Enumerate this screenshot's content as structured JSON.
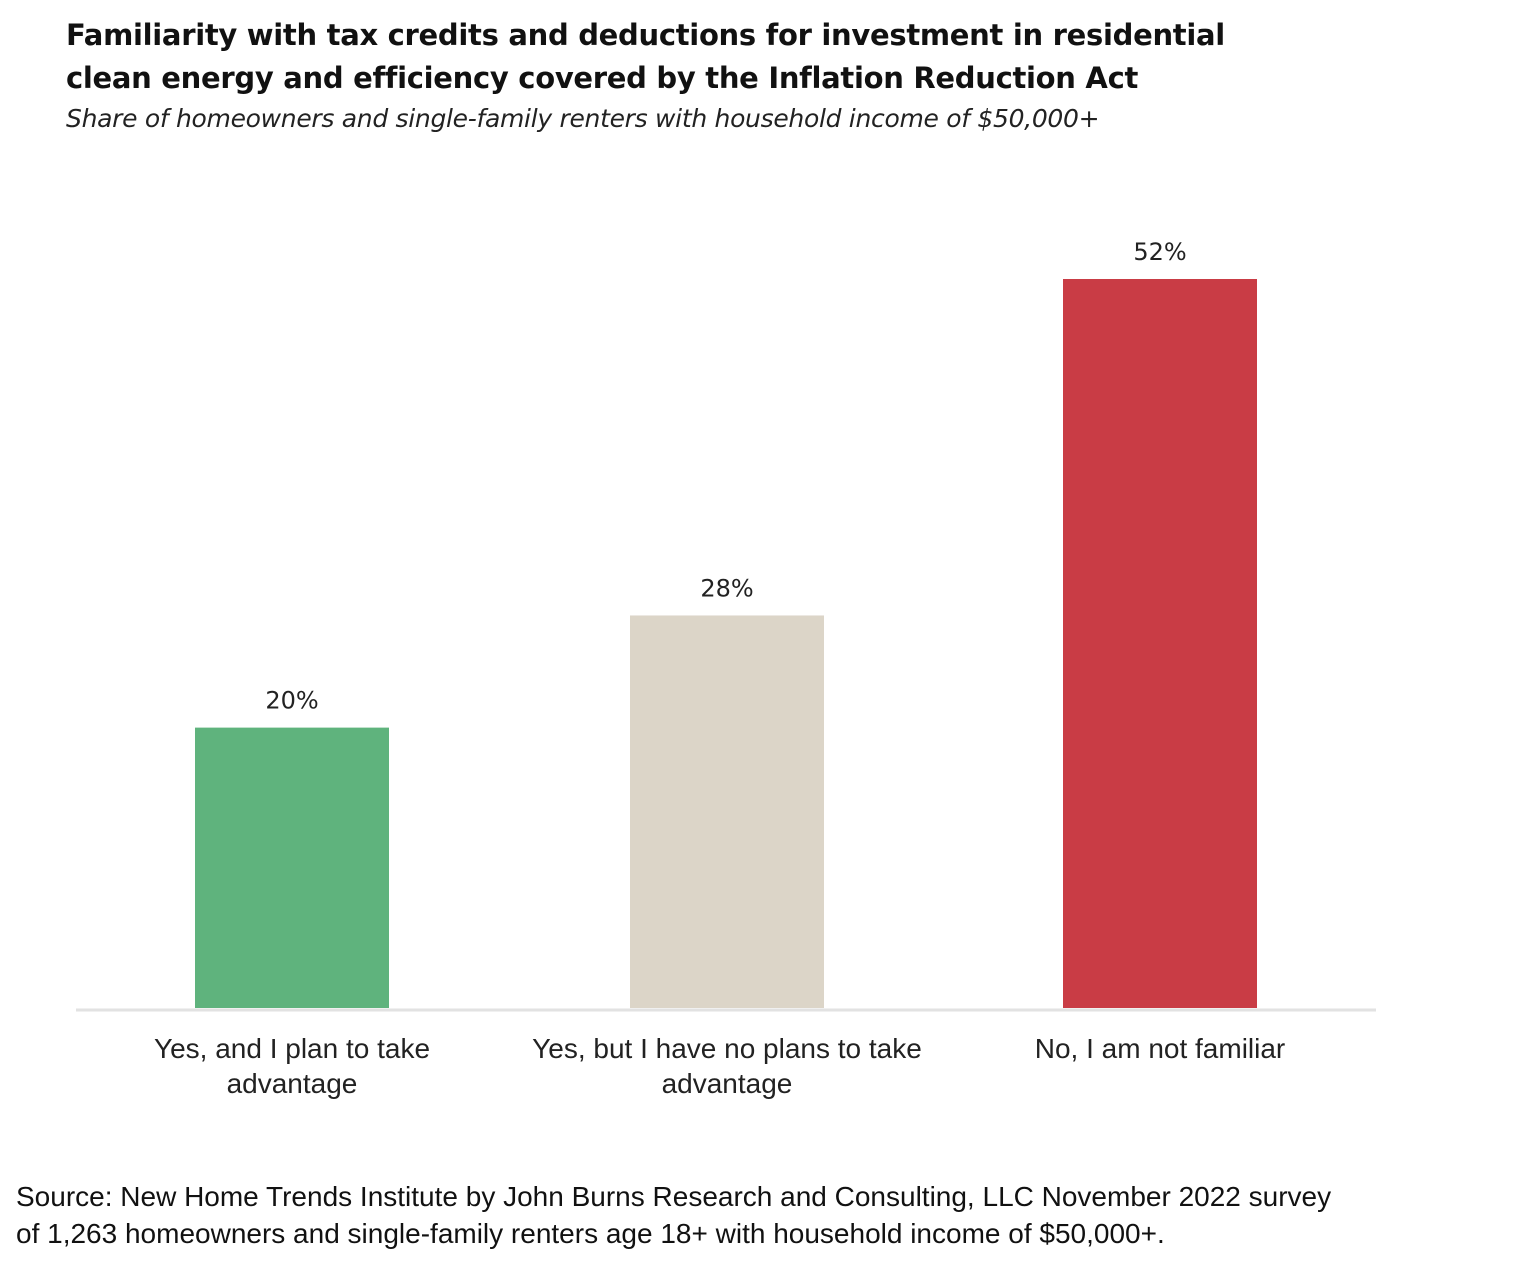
{
  "chart_data": {
    "type": "bar",
    "title": "Familiarity with tax credits and deductions for investment in residential clean energy and efficiency covered by the Inflation Reduction Act",
    "title_lines": [
      "Familiarity with tax credits and deductions for investment in residential",
      "clean energy and efficiency covered by the Inflation Reduction Act"
    ],
    "subtitle": "Share of homeowners and single-family renters with household income of $50,000+",
    "categories": [
      [
        "Yes, and I plan to take",
        "advantage"
      ],
      [
        "Yes, but I have no plans to take",
        "advantage"
      ],
      [
        "No, I am not familiar"
      ]
    ],
    "values": [
      20,
      28,
      52
    ],
    "value_labels": [
      "20%",
      "28%",
      "52%"
    ],
    "colors": [
      "#5fb37d",
      "#dcd5c8",
      "#c93c45"
    ],
    "xlabel": "",
    "ylabel": "",
    "ylim": [
      0,
      52
    ],
    "grid": false,
    "legend": "none",
    "axis_color": "#e2e2e2"
  },
  "source": {
    "lines": [
      "Source: New Home Trends Institute by John Burns Research and Consulting, LLC November 2022 survey",
      "of 1,263 homeowners and single-family renters age 18+ with household income of $50,000+."
    ]
  }
}
